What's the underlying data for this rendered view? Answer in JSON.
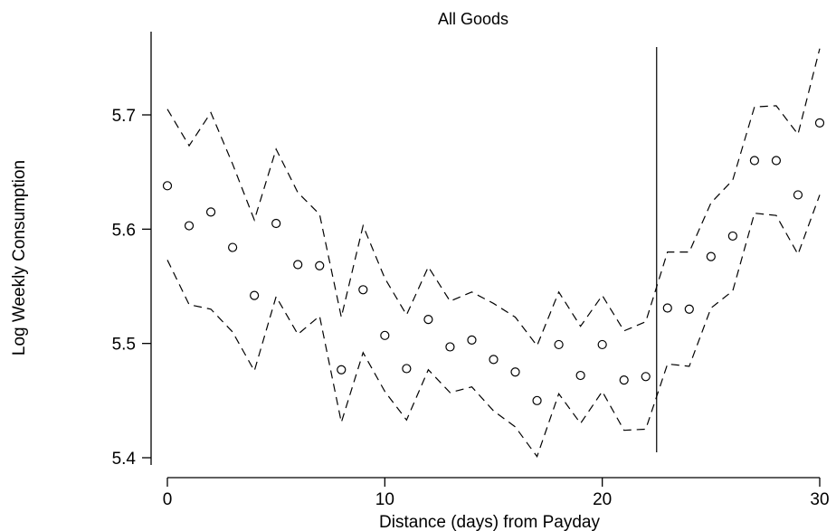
{
  "chart_data": {
    "type": "scatter",
    "title": "All Goods",
    "xlabel": "Distance (days) from Payday",
    "ylabel": "Log Weekly Consumption",
    "xlim": [
      0,
      30
    ],
    "ylim": [
      5.4,
      5.75
    ],
    "x_ticks": [
      0,
      10,
      20,
      30
    ],
    "x_tick_labels": [
      "0",
      "10",
      "20",
      "30"
    ],
    "y_ticks": [
      5.4,
      5.5,
      5.6,
      5.7
    ],
    "y_tick_labels": [
      "5.4",
      "5.5",
      "5.6",
      "5.7"
    ],
    "grid": false,
    "reference_line_x": 22.5,
    "series": [
      {
        "marker": "hollow-circle",
        "x": [
          0,
          1,
          2,
          3,
          4,
          5,
          6,
          7,
          8,
          9,
          10,
          11,
          12,
          13,
          14,
          15,
          16,
          17,
          18,
          19,
          20,
          21,
          22,
          23,
          24,
          25,
          26,
          27,
          28,
          29,
          30
        ],
        "y": [
          5.638,
          5.603,
          5.615,
          5.584,
          5.542,
          5.605,
          5.569,
          5.568,
          5.477,
          5.547,
          5.507,
          5.478,
          5.521,
          5.497,
          5.503,
          5.486,
          5.475,
          5.45,
          5.499,
          5.472,
          5.499,
          5.468,
          5.471,
          5.531,
          5.53,
          5.576,
          5.594,
          5.66,
          5.66,
          5.63,
          5.693
        ]
      },
      {
        "line": "dashed",
        "x": [
          0,
          1,
          2,
          3,
          4,
          5,
          6,
          7,
          8,
          9,
          10,
          11,
          12,
          13,
          14,
          15,
          16,
          17,
          18,
          19,
          20,
          21,
          22,
          23,
          24,
          25,
          26,
          27,
          28,
          29,
          30
        ],
        "y": [
          5.705,
          5.673,
          5.702,
          5.657,
          5.608,
          5.67,
          5.632,
          5.613,
          5.523,
          5.603,
          5.557,
          5.525,
          5.567,
          5.537,
          5.545,
          5.535,
          5.523,
          5.498,
          5.545,
          5.515,
          5.542,
          5.511,
          5.519,
          5.58,
          5.58,
          5.623,
          5.643,
          5.707,
          5.708,
          5.683,
          5.758
        ]
      },
      {
        "line": "dashed",
        "x": [
          0,
          1,
          2,
          3,
          4,
          5,
          6,
          7,
          8,
          9,
          10,
          11,
          12,
          13,
          14,
          15,
          16,
          17,
          18,
          19,
          20,
          21,
          22,
          23,
          24,
          25,
          26,
          27,
          28,
          29,
          30
        ],
        "y": [
          5.573,
          5.534,
          5.53,
          5.51,
          5.476,
          5.541,
          5.508,
          5.524,
          5.431,
          5.492,
          5.458,
          5.433,
          5.477,
          5.457,
          5.462,
          5.441,
          5.427,
          5.401,
          5.456,
          5.43,
          5.458,
          5.424,
          5.425,
          5.482,
          5.48,
          5.531,
          5.546,
          5.614,
          5.612,
          5.578,
          5.63
        ]
      }
    ]
  }
}
